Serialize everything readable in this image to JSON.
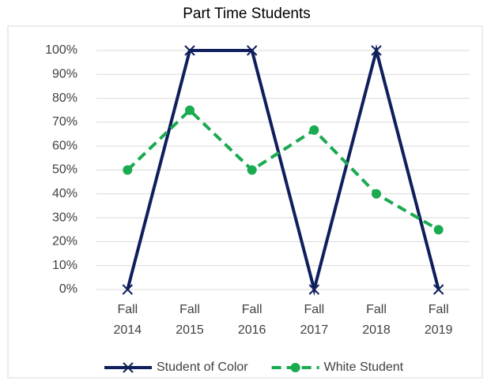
{
  "chart_data": {
    "type": "line",
    "title": "Part Time Students",
    "categories": [
      "Fall 2014",
      "Fall 2015",
      "Fall 2016",
      "Fall 2017",
      "Fall 2018",
      "Fall 2019"
    ],
    "series": [
      {
        "name": "Student of Color",
        "color": "#0f1f5c",
        "values": [
          0,
          100,
          100,
          0,
          100,
          0
        ]
      },
      {
        "name": "White Student",
        "color": "#1aaa4f",
        "values": [
          50,
          75,
          50,
          66.7,
          40,
          25
        ]
      }
    ],
    "ylim": [
      0,
      100
    ],
    "yticks": [
      {
        "value": 0,
        "label": "0%"
      },
      {
        "value": 10,
        "label": "10%"
      },
      {
        "value": 20,
        "label": "20%"
      },
      {
        "value": 30,
        "label": "30%"
      },
      {
        "value": 40,
        "label": "40%"
      },
      {
        "value": 50,
        "label": "50%"
      },
      {
        "value": 60,
        "label": "60%"
      },
      {
        "value": 70,
        "label": "70%"
      },
      {
        "value": 80,
        "label": "80%"
      },
      {
        "value": 90,
        "label": "90%"
      },
      {
        "value": 100,
        "label": "100%"
      }
    ],
    "grid": true,
    "legend": "bottom"
  }
}
